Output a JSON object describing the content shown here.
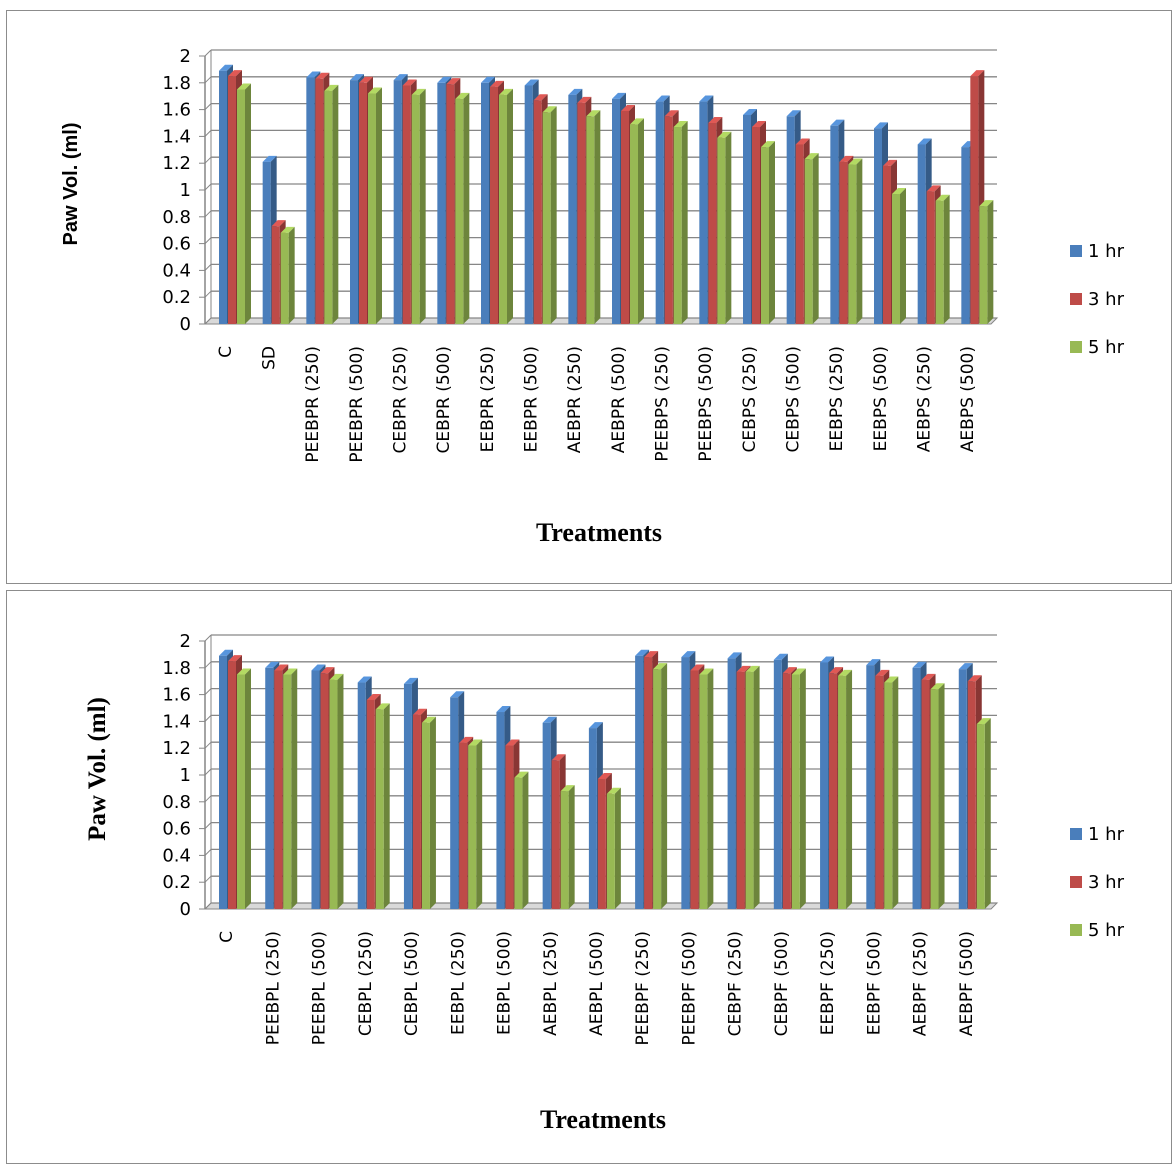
{
  "colors": {
    "s1": "#4a7ebb",
    "s2": "#be4b48",
    "s3": "#98b954",
    "grid": "#868686"
  },
  "chart_data": [
    {
      "type": "bar",
      "title": "",
      "xlabel": "Treatments",
      "ylabel": "Paw Vol. (ml)",
      "ylim": [
        0,
        2
      ],
      "yticks": [
        "0",
        "0.2",
        "0.4",
        "0.6",
        "0.8",
        "1",
        "1.2",
        "1.4",
        "1.6",
        "1.8",
        "2"
      ],
      "grid": true,
      "legend_position": "right",
      "categories": [
        "C",
        "SD",
        "PEEBPR (250)",
        "PEEBPR (500)",
        "CEBPR (250)",
        "CEBPR (500)",
        "EEBPR (250)",
        "EEBPR (500)",
        "AEBPR (250)",
        "AEBPR (500)",
        "PEEBPS (250)",
        "PEEBPS (500)",
        "CEBPS (250)",
        "CEBPS (500)",
        "EEBPS (250)",
        "EEBPS (500)",
        "AEBPS (250)",
        "AEBPS (500)"
      ],
      "series": [
        {
          "name": "1 hr",
          "values": [
            1.89,
            1.21,
            1.84,
            1.82,
            1.82,
            1.8,
            1.8,
            1.78,
            1.71,
            1.68,
            1.66,
            1.66,
            1.56,
            1.55,
            1.48,
            1.46,
            1.34,
            1.32
          ]
        },
        {
          "name": "3 hr",
          "values": [
            1.85,
            0.73,
            1.83,
            1.8,
            1.78,
            1.79,
            1.77,
            1.67,
            1.65,
            1.59,
            1.55,
            1.5,
            1.47,
            1.34,
            1.21,
            1.18,
            0.99,
            1.85
          ]
        },
        {
          "name": "5 hr",
          "values": [
            1.75,
            0.68,
            1.74,
            1.72,
            1.71,
            1.68,
            1.71,
            1.58,
            1.55,
            1.49,
            1.47,
            1.39,
            1.32,
            1.23,
            1.19,
            0.97,
            0.92,
            0.88
          ]
        }
      ]
    },
    {
      "type": "bar",
      "title": "",
      "xlabel": "Treatments",
      "ylabel": "Paw Vol. (ml)",
      "ylim": [
        0,
        2
      ],
      "yticks": [
        "0",
        "0.2",
        "0.4",
        "0.6",
        "0.8",
        "1",
        "1.2",
        "1.4",
        "1.6",
        "1.8",
        "2"
      ],
      "grid": true,
      "legend_position": "right",
      "categories": [
        "C",
        "PEEBPL (250)",
        "PEEBPL (500)",
        "CEBPL (250)",
        "CEBPL (500)",
        "EEBPL (250)",
        "EEBPL (500)",
        "AEBPL (250)",
        "AEBPL (500)",
        "PEEBPF (250)",
        "PEEBPF (500)",
        "CEBPF (250)",
        "CEBPF (500)",
        "EEBPF (250)",
        "EEBPF (500)",
        "AEBPF (250)",
        "AEBPF (500)"
      ],
      "series": [
        {
          "name": "1 hr",
          "values": [
            1.89,
            1.8,
            1.78,
            1.69,
            1.68,
            1.58,
            1.47,
            1.39,
            1.35,
            1.89,
            1.88,
            1.87,
            1.86,
            1.84,
            1.82,
            1.8,
            1.79
          ]
        },
        {
          "name": "3 hr",
          "values": [
            1.85,
            1.78,
            1.76,
            1.56,
            1.45,
            1.24,
            1.22,
            1.11,
            0.97,
            1.88,
            1.78,
            1.77,
            1.76,
            1.76,
            1.74,
            1.71,
            1.7
          ]
        },
        {
          "name": "5 hr",
          "values": [
            1.75,
            1.75,
            1.71,
            1.49,
            1.39,
            1.22,
            0.98,
            0.88,
            0.86,
            1.79,
            1.75,
            1.77,
            1.75,
            1.74,
            1.69,
            1.64,
            1.38
          ]
        }
      ]
    }
  ]
}
